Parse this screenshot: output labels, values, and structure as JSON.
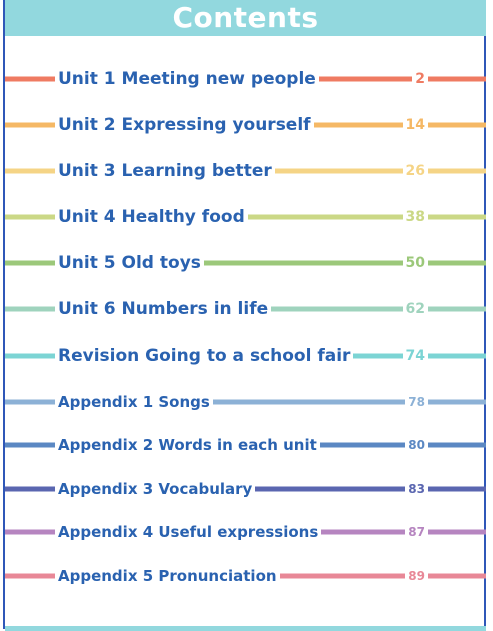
{
  "title": "Contents",
  "colors": {
    "frame": "#2f57b8",
    "header_band": "#92d8de",
    "text": "#2a62b0"
  },
  "entries": [
    {
      "label": "Unit 1  Meeting new people",
      "page": "2",
      "color": "#ef7b62"
    },
    {
      "label": "Unit 2  Expressing yourself",
      "page": "14",
      "color": "#f5b865"
    },
    {
      "label": "Unit 3  Learning better",
      "page": "26",
      "color": "#f5d486"
    },
    {
      "label": "Unit 4  Healthy food",
      "page": "38",
      "color": "#cbd886"
    },
    {
      "label": "Unit 5  Old toys",
      "page": "50",
      "color": "#9cc87a"
    },
    {
      "label": "Unit 6  Numbers in life",
      "page": "62",
      "color": "#9fd3bd"
    },
    {
      "label": "Revision  Going to a school fair",
      "page": "74",
      "color": "#7cd4d4"
    },
    {
      "label": "Appendix 1  Songs",
      "page": "78",
      "color": "#8cb1d6"
    },
    {
      "label": "Appendix 2  Words in each unit",
      "page": "80",
      "color": "#5b88c3"
    },
    {
      "label": "Appendix 3  Vocabulary",
      "page": "83",
      "color": "#5a66b0"
    },
    {
      "label": "Appendix 4  Useful expressions",
      "page": "87",
      "color": "#b685c0"
    },
    {
      "label": "Appendix 5  Pronunciation",
      "page": "89",
      "color": "#e88897"
    }
  ]
}
